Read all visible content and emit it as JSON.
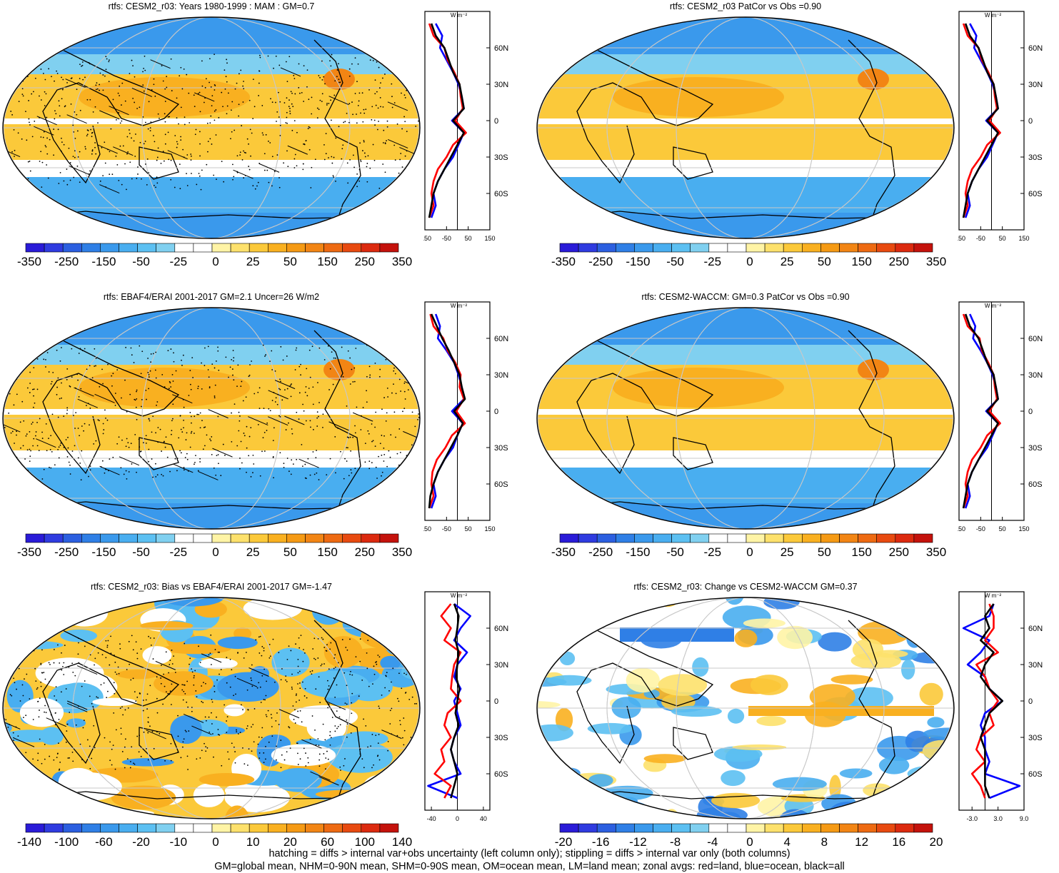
{
  "panels": [
    {
      "id": "p1",
      "title": "rtfs: CESM2_r03: Years 1980-1999 : MAM : GM=0.7",
      "colorbar_labels": [
        "-350",
        "-250",
        "-150",
        "-50",
        "-25",
        "0",
        "25",
        "50",
        "150",
        "250",
        "350"
      ],
      "colorbar_scale": "full",
      "zonal_units": "W m⁻²",
      "zonal_xticks": [
        "-150",
        "-50",
        "50",
        "150"
      ],
      "zonal_xrange": [
        -150,
        150
      ],
      "zonal_lat_labels": [
        "60N",
        "30N",
        "0",
        "30S",
        "60S"
      ],
      "stippled": true,
      "hatched": true
    },
    {
      "id": "p2",
      "title": "rtfs: CESM2_r03 PatCor vs Obs =0.90",
      "colorbar_labels": [
        "-350",
        "-250",
        "-150",
        "-50",
        "-25",
        "0",
        "25",
        "50",
        "150",
        "250",
        "350"
      ],
      "colorbar_scale": "full",
      "zonal_units": "W m⁻²",
      "zonal_xticks": [
        "-150",
        "-50",
        "50",
        "150"
      ],
      "zonal_xrange": [
        -150,
        150
      ],
      "zonal_lat_labels": [
        "60N",
        "30N",
        "0",
        "30S",
        "60S"
      ],
      "stippled": false,
      "hatched": false
    },
    {
      "id": "p3",
      "title": "rtfs: EBAF4/ERAI 2001-2017 GM=2.1 Uncer=26 W/m2",
      "colorbar_labels": [
        "-350",
        "-250",
        "-150",
        "-50",
        "-25",
        "0",
        "25",
        "50",
        "150",
        "250",
        "350"
      ],
      "colorbar_scale": "full",
      "zonal_units": "W m⁻²",
      "zonal_xticks": [
        "-150",
        "-50",
        "50",
        "150"
      ],
      "zonal_xrange": [
        -150,
        150
      ],
      "zonal_lat_labels": [
        "60N",
        "30N",
        "0",
        "30S",
        "60S"
      ],
      "stippled": true,
      "hatched": true
    },
    {
      "id": "p4",
      "title": "rtfs: CESM2-WACCM: GM=0.3 PatCor vs Obs =0.90",
      "colorbar_labels": [
        "-350",
        "-250",
        "-150",
        "-50",
        "-25",
        "0",
        "25",
        "50",
        "150",
        "250",
        "350"
      ],
      "colorbar_scale": "full",
      "zonal_units": "W m⁻²",
      "zonal_xticks": [
        "-150",
        "-50",
        "50",
        "150"
      ],
      "zonal_xrange": [
        -150,
        150
      ],
      "zonal_lat_labels": [
        "60N",
        "30N",
        "0",
        "30S",
        "60S"
      ],
      "stippled": false,
      "hatched": false
    },
    {
      "id": "p5",
      "title": "rtfs: CESM2_r03: Bias vs EBAF4/ERAI 2001-2017 GM=-1.47",
      "colorbar_labels": [
        "-140",
        "-100",
        "-60",
        "-20",
        "-10",
        "0",
        "10",
        "20",
        "60",
        "100",
        "140"
      ],
      "colorbar_scale": "bias",
      "zonal_units": "W m⁻²",
      "zonal_xticks": [
        "-40",
        "0",
        "40"
      ],
      "zonal_xrange": [
        -50,
        50
      ],
      "zonal_lat_labels": [
        "60N",
        "30N",
        "0",
        "30S",
        "60S"
      ],
      "stippled": true,
      "hatched": true
    },
    {
      "id": "p6",
      "title": "rtfs: CESM2_r03: Change vs CESM2-WACCM GM=0.37",
      "colorbar_labels": [
        "-20",
        "-16",
        "-12",
        "-8",
        "-4",
        "0",
        "4",
        "8",
        "12",
        "16",
        "20"
      ],
      "colorbar_scale": "change",
      "zonal_units": "W m⁻²",
      "zonal_xticks": [
        "-3.0",
        "3.0",
        "9.0"
      ],
      "zonal_xrange": [
        -6,
        9
      ],
      "zonal_lat_labels": [
        "60N",
        "30N",
        "0",
        "30S",
        "60S"
      ],
      "stippled": false,
      "hatched": false
    }
  ],
  "colors": {
    "colorbar": [
      "#2a1bd8",
      "#2f3be0",
      "#2c5fe0",
      "#2f7fe6",
      "#3a99ec",
      "#49aef0",
      "#5cc0f2",
      "#80d0f0",
      "#ffffff",
      "#ffffff",
      "#fff4a6",
      "#fde16c",
      "#fbc93a",
      "#f9b020",
      "#f59a14",
      "#f28514",
      "#ee6a12",
      "#e84a10",
      "#dc2a0f",
      "#c4120c"
    ],
    "land_line": "#000000",
    "zonal_land": "#ff0000",
    "zonal_ocean": "#0000ff",
    "zonal_all": "#000000",
    "grid": "#c8c8c8"
  },
  "chart_data": [
    {
      "type": "heatmap",
      "title": "rtfs: CESM2_r03: Years 1980-1999 : MAM : GM=0.7",
      "zonal_profile_lat": [
        80,
        70,
        60,
        50,
        40,
        30,
        20,
        10,
        0,
        -10,
        -20,
        -30,
        -40,
        -50,
        -60,
        -70,
        -80
      ],
      "zonal_all": [
        -120,
        -100,
        -60,
        -40,
        -20,
        10,
        20,
        30,
        -20,
        30,
        0,
        -30,
        -60,
        -90,
        -110,
        -120,
        -130
      ],
      "zonal_land": [
        -130,
        -110,
        -60,
        -45,
        -15,
        10,
        15,
        25,
        -10,
        40,
        -20,
        -50,
        -90,
        -110,
        -120,
        -110,
        -130
      ],
      "zonal_ocean": [
        -100,
        -70,
        -80,
        -50,
        -20,
        5,
        20,
        30,
        -25,
        30,
        5,
        -20,
        -60,
        -90,
        -110,
        -100,
        -120
      ]
    },
    {
      "type": "heatmap",
      "title": "rtfs: CESM2_r03 PatCor vs Obs =0.90",
      "zonal_profile_lat": [
        80,
        70,
        60,
        50,
        40,
        30,
        20,
        10,
        0,
        -10,
        -20,
        -30,
        -40,
        -50,
        -60,
        -70,
        -80
      ],
      "zonal_all": [
        -120,
        -100,
        -60,
        -40,
        -20,
        10,
        20,
        30,
        -20,
        30,
        0,
        -30,
        -60,
        -90,
        -110,
        -120,
        -130
      ],
      "zonal_land": [
        -130,
        -110,
        -60,
        -45,
        -15,
        10,
        15,
        25,
        -10,
        40,
        -20,
        -50,
        -90,
        -110,
        -120,
        -110,
        -130
      ],
      "zonal_ocean": [
        -100,
        -70,
        -80,
        -50,
        -20,
        5,
        20,
        30,
        -25,
        30,
        5,
        -20,
        -60,
        -90,
        -110,
        -100,
        -120
      ]
    },
    {
      "type": "heatmap",
      "title": "rtfs: EBAF4/ERAI 2001-2017 GM=2.1 Uncer=26 W/m2",
      "zonal_profile_lat": [
        80,
        70,
        60,
        50,
        40,
        30,
        20,
        10,
        0,
        -10,
        -20,
        -30,
        -40,
        -50,
        -60,
        -70,
        -80
      ],
      "zonal_all": [
        -120,
        -95,
        -70,
        -40,
        -15,
        10,
        20,
        35,
        -15,
        25,
        0,
        -30,
        -60,
        -90,
        -110,
        -125,
        -130
      ],
      "zonal_land": [
        -125,
        -110,
        -65,
        -45,
        -10,
        15,
        10,
        30,
        -5,
        35,
        -25,
        -55,
        -95,
        -115,
        -120,
        -110,
        -130
      ],
      "zonal_ocean": [
        -100,
        -80,
        -90,
        -50,
        -15,
        5,
        20,
        30,
        -25,
        25,
        0,
        -20,
        -60,
        -90,
        -110,
        -100,
        -120
      ]
    },
    {
      "type": "heatmap",
      "title": "rtfs: CESM2-WACCM: GM=0.3 PatCor vs Obs =0.90",
      "zonal_profile_lat": [
        80,
        70,
        60,
        50,
        40,
        30,
        20,
        10,
        0,
        -10,
        -20,
        -30,
        -40,
        -50,
        -60,
        -70,
        -80
      ],
      "zonal_all": [
        -120,
        -100,
        -60,
        -40,
        -20,
        10,
        20,
        30,
        -20,
        30,
        0,
        -30,
        -60,
        -90,
        -110,
        -120,
        -130
      ],
      "zonal_land": [
        -130,
        -110,
        -55,
        -45,
        -15,
        10,
        15,
        25,
        -10,
        40,
        -20,
        -50,
        -90,
        -110,
        -120,
        -110,
        -130
      ],
      "zonal_ocean": [
        -100,
        -75,
        -85,
        -50,
        -20,
        5,
        20,
        30,
        -25,
        30,
        5,
        -20,
        -60,
        -90,
        -110,
        -100,
        -120
      ]
    },
    {
      "type": "heatmap",
      "title": "rtfs: CESM2_r03: Bias vs EBAF4/ERAI 2001-2017 GM=-1.47",
      "zonal_profile_lat": [
        80,
        70,
        60,
        50,
        40,
        30,
        20,
        10,
        0,
        -10,
        -20,
        -30,
        -40,
        -50,
        -60,
        -70,
        -80
      ],
      "zonal_all": [
        -5,
        2,
        0,
        -3,
        2,
        0,
        -2,
        3,
        0,
        -3,
        2,
        -5,
        -10,
        -5,
        0,
        -5,
        -10
      ],
      "zonal_land": [
        -10,
        -25,
        -10,
        -20,
        5,
        -5,
        -8,
        -10,
        5,
        -15,
        -20,
        -10,
        -25,
        -20,
        -35,
        -10,
        -20
      ],
      "zonal_ocean": [
        -5,
        20,
        5,
        -5,
        15,
        0,
        -5,
        5,
        -5,
        0,
        5,
        -5,
        -10,
        -5,
        5,
        -45,
        0
      ]
    },
    {
      "type": "heatmap",
      "title": "rtfs: CESM2_r03: Change vs CESM2-WACCM GM=0.37",
      "zonal_profile_lat": [
        80,
        70,
        60,
        50,
        40,
        30,
        20,
        10,
        0,
        -10,
        -20,
        -30,
        -40,
        -50,
        -60,
        -70,
        -80
      ],
      "zonal_all": [
        2,
        0,
        1,
        -1,
        2,
        0,
        -1,
        1,
        4,
        1,
        0,
        -1,
        0,
        0,
        0,
        0,
        1
      ],
      "zonal_land": [
        1,
        2,
        2,
        0,
        3,
        -2,
        0,
        1,
        3,
        1,
        2,
        -1,
        -2,
        0,
        -3,
        -1,
        0
      ],
      "zonal_ocean": [
        2,
        1,
        -5,
        1,
        -1,
        -4,
        0,
        1,
        4,
        0,
        -1,
        0,
        0,
        1,
        0,
        8,
        1
      ]
    }
  ],
  "footer": {
    "line1": "hatching = diffs > internal var+obs uncertainty (left column only); stippling = diffs > internal var only (both columns)",
    "line2": "GM=global mean, NHM=0-90N mean, SHM=0-90S mean, OM=ocean mean, LM=land mean; zonal avgs: red=land, blue=ocean, black=all"
  }
}
